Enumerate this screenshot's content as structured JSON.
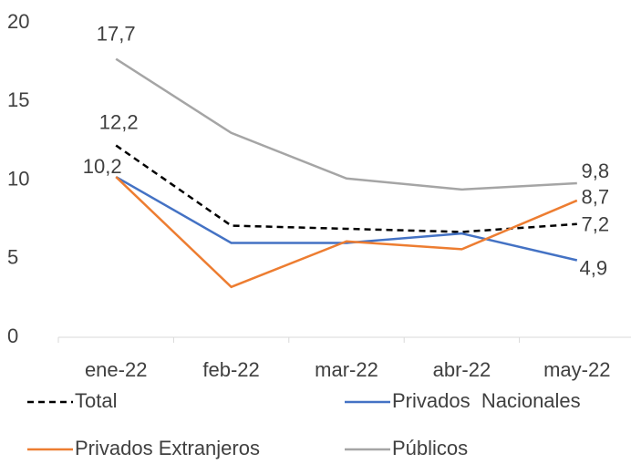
{
  "chart_data": {
    "type": "line",
    "categories": [
      "ene-22",
      "feb-22",
      "mar-22",
      "abr-22",
      "may-22"
    ],
    "series": [
      {
        "name": "Total",
        "color": "#000000",
        "dash": true,
        "values": [
          12.2,
          7.1,
          6.9,
          6.7,
          7.2
        ],
        "value_labels": [
          "12,2",
          null,
          null,
          null,
          "7,2"
        ]
      },
      {
        "name": "Privados  Nacionales",
        "color": "#4472c4",
        "values": [
          10.2,
          6.0,
          6.0,
          6.6,
          4.9
        ],
        "value_labels": [
          "10,2",
          null,
          null,
          null,
          "4,9"
        ]
      },
      {
        "name": "Privados Extranjeros",
        "color": "#ed7d31",
        "values": [
          10.2,
          3.2,
          6.1,
          5.6,
          8.7
        ],
        "value_labels": [
          null,
          null,
          null,
          null,
          "8,7"
        ]
      },
      {
        "name": "Públicos",
        "color": "#a5a5a5",
        "values": [
          17.7,
          13.0,
          10.1,
          9.4,
          9.8
        ],
        "value_labels": [
          "17,7",
          null,
          null,
          null,
          "9,8"
        ]
      }
    ],
    "ylim": [
      0,
      20
    ],
    "yticks": [
      0,
      5,
      10,
      15,
      20
    ],
    "grid": false,
    "legend": "bottom"
  }
}
